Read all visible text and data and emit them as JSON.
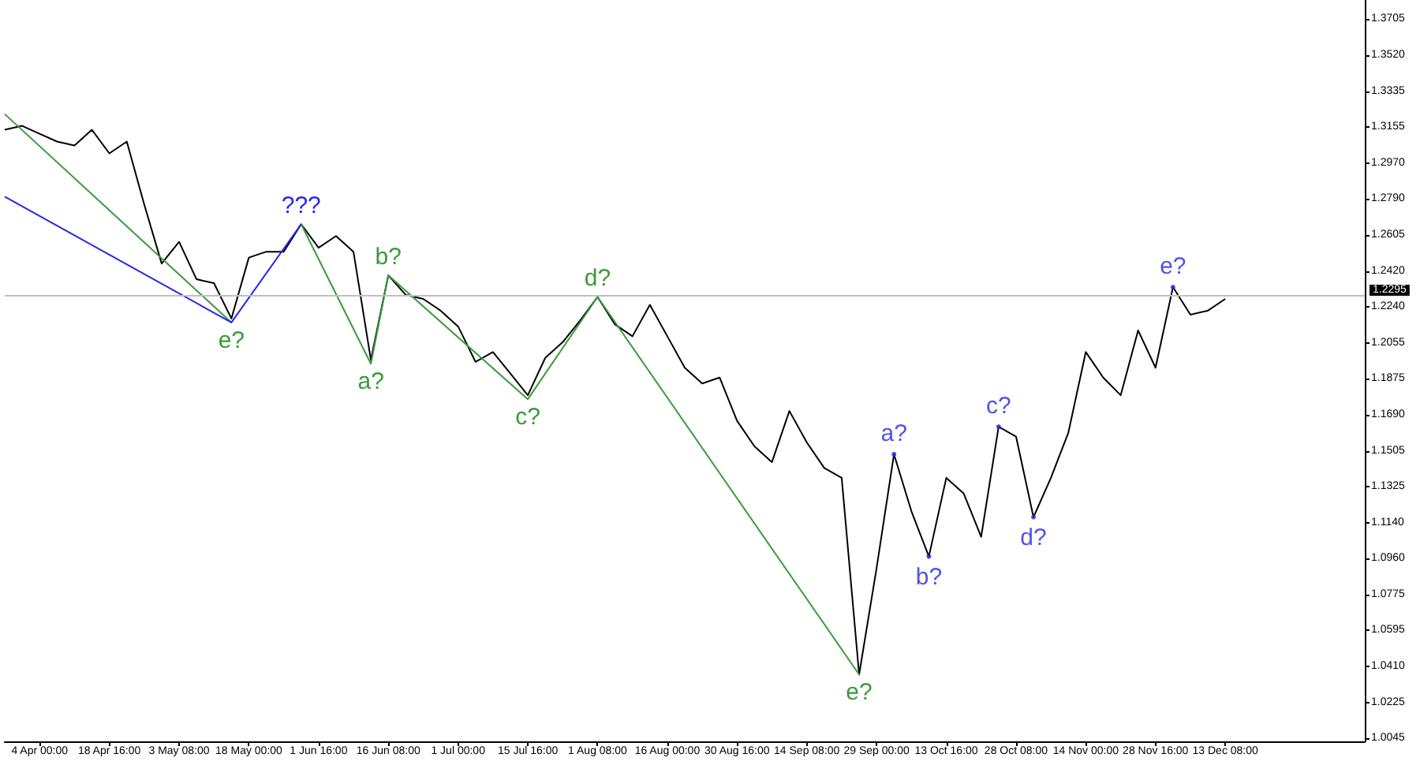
{
  "chart_data": {
    "type": "line",
    "marker": "none",
    "categories": [
      null,
      null,
      "4 Apr 00:00",
      null,
      null,
      null,
      "18 Apr 16:00",
      null,
      null,
      null,
      "3 May 08:00",
      null,
      null,
      null,
      "18 May 00:00",
      null,
      null,
      null,
      "1 Jun 16:00",
      null,
      null,
      null,
      "16 Jun 08:00",
      null,
      null,
      null,
      "1 Jul 00:00",
      null,
      null,
      null,
      "15 Jul 16:00",
      null,
      null,
      null,
      "1 Aug 08:00",
      null,
      null,
      null,
      "16 Aug 00:00",
      null,
      null,
      null,
      "30 Aug 16:00",
      null,
      null,
      null,
      "14 Sep 08:00",
      null,
      null,
      null,
      "29 Sep 00:00",
      null,
      null,
      null,
      "13 Oct 16:00",
      null,
      null,
      null,
      "28 Oct 08:00",
      null,
      null,
      null,
      "14 Nov 00:00",
      null,
      null,
      null,
      "28 Nov 16:00",
      null,
      null,
      null,
      "13 Dec 08:00",
      null,
      null,
      null,
      null,
      null,
      null,
      null,
      null
    ],
    "ylim": [
      1.003,
      1.38
    ],
    "yticks": [
      1.3705,
      {
        "value": 1.352,
        "label": "1.3520"
      },
      1.3335,
      1.3155,
      {
        "value": 1.297,
        "label": "1.2970"
      },
      {
        "value": 1.279,
        "label": "1.2790"
      },
      1.2605,
      {
        "value": 1.242,
        "label": "1.2420"
      },
      {
        "value": 1.224,
        "label": "1.2240"
      },
      1.2055,
      1.1875,
      {
        "value": 1.169,
        "label": "1.1690"
      },
      1.1505,
      1.1325,
      {
        "value": 1.114,
        "label": "1.1140"
      },
      {
        "value": 1.096,
        "label": "1.0960"
      },
      1.0775,
      1.0595,
      {
        "value": 1.041,
        "label": "1.0410"
      },
      1.0225,
      1.0045
    ],
    "ref_lines": [
      {
        "axis": "y",
        "value": 1.2295,
        "label": "1.2295",
        "color": "#c0c0c0"
      }
    ],
    "series": [
      {
        "color": "#000000",
        "values": [
          1.314,
          1.316,
          1.312,
          1.308,
          1.306,
          1.314,
          1.302,
          1.308,
          1.276,
          1.246,
          1.257,
          1.238,
          1.236,
          1.218,
          1.249,
          1.252,
          1.252,
          1.266,
          1.254,
          1.26,
          1.252,
          1.197,
          1.24,
          1.23,
          1.228,
          1.222,
          1.214,
          1.196,
          1.201,
          1.19,
          1.179,
          1.198,
          1.206,
          1.217,
          1.229,
          1.215,
          1.209,
          1.225,
          1.209,
          1.193,
          1.185,
          1.188,
          1.166,
          1.153,
          1.145,
          1.171,
          1.155,
          1.142,
          1.137,
          1.037,
          1.091,
          1.149,
          1.12,
          1.097,
          1.137,
          1.129,
          1.107,
          1.163,
          1.158,
          1.117,
          1.137,
          1.16,
          1.201,
          1.188,
          1.179,
          1.212,
          1.193,
          1.234,
          1.22,
          1.222,
          1.228,
          null,
          null,
          null,
          null,
          null,
          null,
          null,
          null
        ]
      },
      {
        "type": "line",
        "color": "#3c9a3c",
        "values": [
          1.322,
          null,
          null,
          null,
          null,
          null,
          null,
          null,
          null,
          null,
          null,
          null,
          null,
          1.216,
          null,
          null,
          null,
          null,
          null,
          null,
          null,
          null,
          null,
          null,
          null,
          null,
          null,
          null,
          null,
          null,
          null,
          null,
          null,
          null,
          null,
          null,
          null,
          null,
          null,
          null,
          null,
          null,
          null,
          null,
          null,
          null,
          null,
          null,
          null,
          null,
          null,
          null,
          null,
          null,
          null,
          null,
          null,
          null,
          null,
          null,
          null,
          null,
          null,
          null,
          null,
          null,
          null,
          null,
          null,
          null,
          null,
          null,
          null,
          null,
          null,
          null,
          null,
          null,
          null
        ],
        "value_labels": [
          null,
          null,
          null,
          null,
          null,
          null,
          null,
          null,
          null,
          null,
          null,
          null,
          null,
          "e?",
          null,
          null,
          null,
          null,
          null,
          null,
          null,
          null,
          null,
          null,
          null,
          null,
          null,
          null,
          null,
          null,
          null,
          null,
          null,
          null,
          null,
          null,
          null,
          null,
          null,
          null,
          null,
          null,
          null,
          null,
          null,
          null,
          null,
          null,
          null,
          null,
          null,
          null,
          null,
          null,
          null,
          null,
          null,
          null,
          null,
          null,
          null,
          null,
          null,
          null,
          null,
          null,
          null,
          null,
          null,
          null,
          null,
          null,
          null,
          null,
          null,
          null,
          null,
          null,
          null
        ]
      },
      {
        "type": "line",
        "color": "#3c9a3c",
        "values": [
          null,
          null,
          null,
          null,
          null,
          null,
          null,
          null,
          null,
          null,
          null,
          null,
          null,
          null,
          null,
          null,
          null,
          1.266,
          null,
          null,
          null,
          1.195,
          1.24,
          null,
          null,
          null,
          null,
          null,
          null,
          null,
          1.177,
          null,
          null,
          null,
          1.229,
          null,
          null,
          null,
          null,
          null,
          null,
          null,
          null,
          null,
          null,
          null,
          null,
          null,
          null,
          1.037,
          null,
          null,
          null,
          null,
          null,
          null,
          null,
          null,
          null,
          null,
          null,
          null,
          null,
          null,
          null,
          null,
          null,
          null,
          null,
          null,
          null,
          null,
          null,
          null,
          null,
          null,
          null,
          null,
          null
        ],
        "value_labels": [
          null,
          null,
          null,
          null,
          null,
          null,
          null,
          null,
          null,
          null,
          null,
          null,
          null,
          null,
          null,
          null,
          null,
          null,
          null,
          null,
          null,
          "a?",
          "b?",
          null,
          null,
          null,
          null,
          null,
          null,
          null,
          "c?",
          null,
          null,
          null,
          "d?",
          null,
          null,
          null,
          null,
          null,
          null,
          null,
          null,
          null,
          null,
          null,
          null,
          null,
          null,
          "e?",
          null,
          null,
          null,
          null,
          null,
          null,
          null,
          null,
          null,
          null,
          null,
          null,
          null,
          null,
          null,
          null,
          null,
          null,
          null,
          null,
          null,
          null,
          null,
          null,
          null,
          null,
          null,
          null,
          null
        ]
      },
      {
        "type": "line",
        "color": "#2626e6",
        "values": [
          1.28,
          null,
          null,
          null,
          null,
          null,
          null,
          null,
          null,
          null,
          null,
          null,
          null,
          1.216,
          null,
          null,
          null,
          1.266,
          null,
          null,
          null,
          null,
          null,
          null,
          null,
          null,
          null,
          null,
          null,
          null,
          null,
          null,
          null,
          null,
          null,
          null,
          null,
          null,
          null,
          null,
          null,
          null,
          null,
          null,
          null,
          null,
          null,
          null,
          null,
          null,
          null,
          null,
          null,
          null,
          null,
          null,
          null,
          null,
          null,
          null,
          null,
          null,
          null,
          null,
          null,
          null,
          null,
          null,
          null,
          null,
          null,
          null,
          null,
          null,
          null,
          null,
          null,
          null,
          null
        ],
        "value_labels": [
          null,
          null,
          null,
          null,
          null,
          null,
          null,
          null,
          null,
          null,
          null,
          null,
          null,
          null,
          null,
          null,
          null,
          "???",
          null,
          null,
          null,
          null,
          null,
          null,
          null,
          null,
          null,
          null,
          null,
          null,
          null,
          null,
          null,
          null,
          null,
          null,
          null,
          null,
          null,
          null,
          null,
          null,
          null,
          null,
          null,
          null,
          null,
          null,
          null,
          null,
          null,
          null,
          null,
          null,
          null,
          null,
          null,
          null,
          null,
          null,
          null,
          null,
          null,
          null,
          null,
          null,
          null,
          null,
          null,
          null,
          null,
          null,
          null,
          null,
          null,
          null,
          null,
          null,
          null
        ]
      },
      {
        "type": "scatter",
        "color": "#2626e6",
        "marker": "circle",
        "values": [
          null,
          null,
          null,
          null,
          null,
          null,
          null,
          null,
          null,
          null,
          null,
          null,
          null,
          null,
          null,
          null,
          null,
          null,
          null,
          null,
          null,
          null,
          null,
          null,
          null,
          null,
          null,
          null,
          null,
          null,
          null,
          null,
          null,
          null,
          null,
          null,
          null,
          null,
          null,
          null,
          null,
          null,
          null,
          null,
          null,
          null,
          null,
          null,
          null,
          null,
          null,
          1.149,
          null,
          1.097,
          null,
          null,
          null,
          1.163,
          null,
          1.117,
          null,
          null,
          null,
          null,
          null,
          null,
          null,
          1.234,
          null,
          null,
          null,
          null,
          null,
          null,
          null,
          null,
          null,
          null,
          null
        ],
        "value_labels": [
          null,
          null,
          null,
          null,
          null,
          null,
          null,
          null,
          null,
          null,
          null,
          null,
          null,
          null,
          null,
          null,
          null,
          null,
          null,
          null,
          null,
          null,
          null,
          null,
          null,
          null,
          null,
          null,
          null,
          null,
          null,
          null,
          null,
          null,
          null,
          null,
          null,
          null,
          null,
          null,
          null,
          null,
          null,
          null,
          null,
          null,
          null,
          null,
          null,
          null,
          null,
          "a?",
          null,
          "b?",
          null,
          null,
          null,
          "c?",
          null,
          "d?",
          null,
          null,
          null,
          null,
          null,
          null,
          null,
          "e?",
          null,
          null,
          null,
          null,
          null,
          null,
          null,
          null,
          null,
          null,
          null
        ]
      }
    ]
  }
}
